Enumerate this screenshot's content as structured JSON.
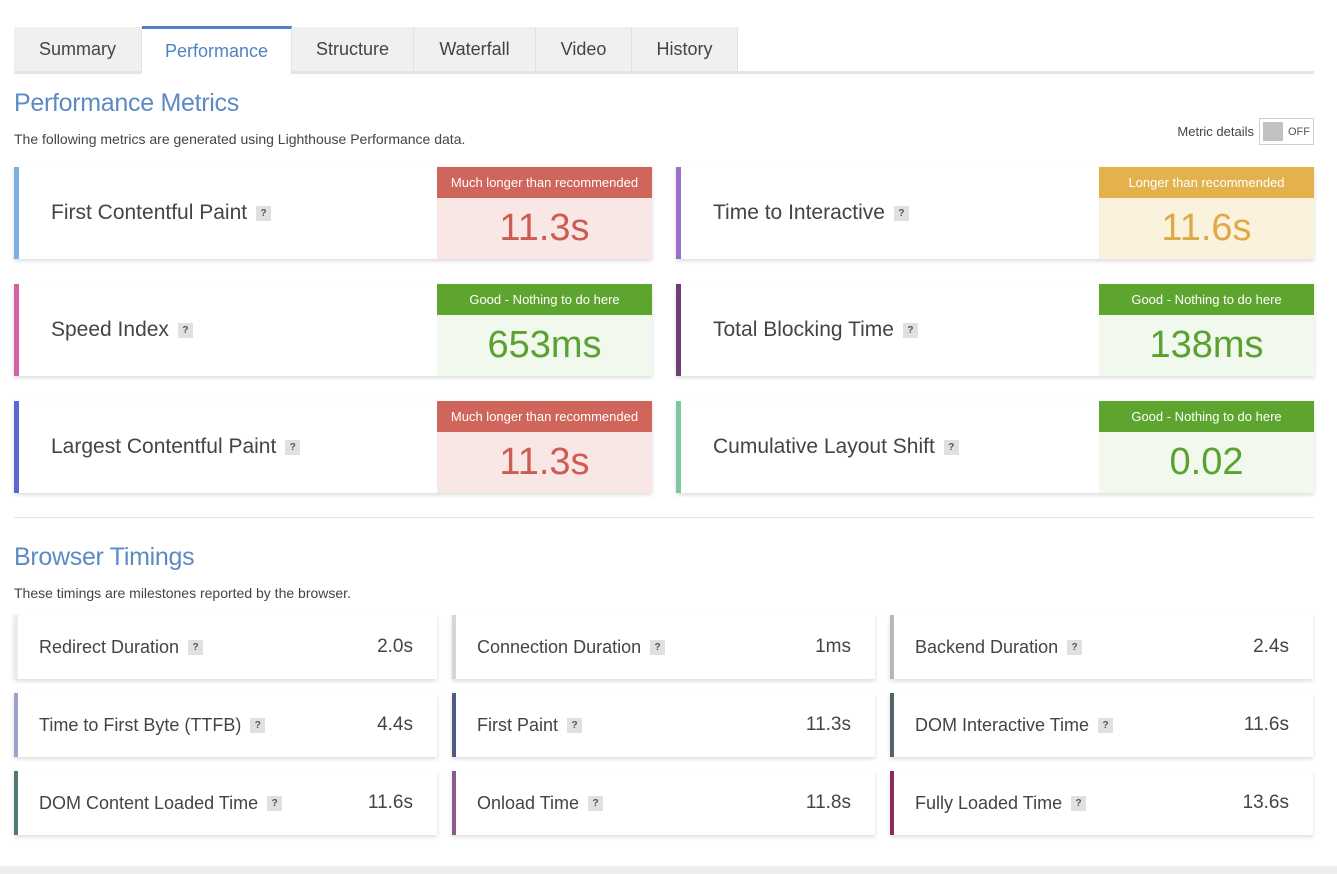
{
  "tabs": [
    {
      "label": "Summary",
      "active": false
    },
    {
      "label": "Performance",
      "active": true
    },
    {
      "label": "Structure",
      "active": false
    },
    {
      "label": "Waterfall",
      "active": false
    },
    {
      "label": "Video",
      "active": false
    },
    {
      "label": "History",
      "active": false
    }
  ],
  "performance": {
    "title": "Performance Metrics",
    "subtitle": "The following metrics are generated using Lighthouse Performance data.",
    "toggle": {
      "label": "Metric details",
      "state": "OFF"
    },
    "help_glyph": "?",
    "metrics": [
      {
        "label": "First Contentful Paint",
        "grade_text": "Much longer than recommended",
        "value": "11.3s",
        "grade": "red",
        "accent": "#7bb0e3"
      },
      {
        "label": "Time to Interactive",
        "grade_text": "Longer than recommended",
        "value": "11.6s",
        "grade": "yellow",
        "accent": "#9b6fcf"
      },
      {
        "label": "Speed Index",
        "grade_text": "Good - Nothing to do here",
        "value": "653ms",
        "grade": "green",
        "accent": "#d560a8"
      },
      {
        "label": "Total Blocking Time",
        "grade_text": "Good - Nothing to do here",
        "value": "138ms",
        "grade": "green",
        "accent": "#6e3d75"
      },
      {
        "label": "Largest Contentful Paint",
        "grade_text": "Much longer than recommended",
        "value": "11.3s",
        "grade": "red",
        "accent": "#5868d4"
      },
      {
        "label": "Cumulative Layout Shift",
        "grade_text": "Good - Nothing to do here",
        "value": "0.02",
        "grade": "green",
        "accent": "#7dc8a3"
      }
    ]
  },
  "timings": {
    "title": "Browser Timings",
    "subtitle": "These timings are milestones reported by the browser.",
    "items": [
      {
        "label": "Redirect Duration",
        "value": "2.0s",
        "accent": "#ececec"
      },
      {
        "label": "Connection Duration",
        "value": "1ms",
        "accent": "#d6d6d6"
      },
      {
        "label": "Backend Duration",
        "value": "2.4s",
        "accent": "#bdb6b8"
      },
      {
        "label": "Time to First Byte (TTFB)",
        "value": "4.4s",
        "accent": "#9aa3cc"
      },
      {
        "label": "First Paint",
        "value": "11.3s",
        "accent": "#4e5c85"
      },
      {
        "label": "DOM Interactive Time",
        "value": "11.6s",
        "accent": "#56636b"
      },
      {
        "label": "DOM Content Loaded Time",
        "value": "11.6s",
        "accent": "#4d7a78"
      },
      {
        "label": "Onload Time",
        "value": "11.8s",
        "accent": "#8e5a8c"
      },
      {
        "label": "Fully Loaded Time",
        "value": "13.6s",
        "accent": "#8a2a5d"
      }
    ]
  }
}
